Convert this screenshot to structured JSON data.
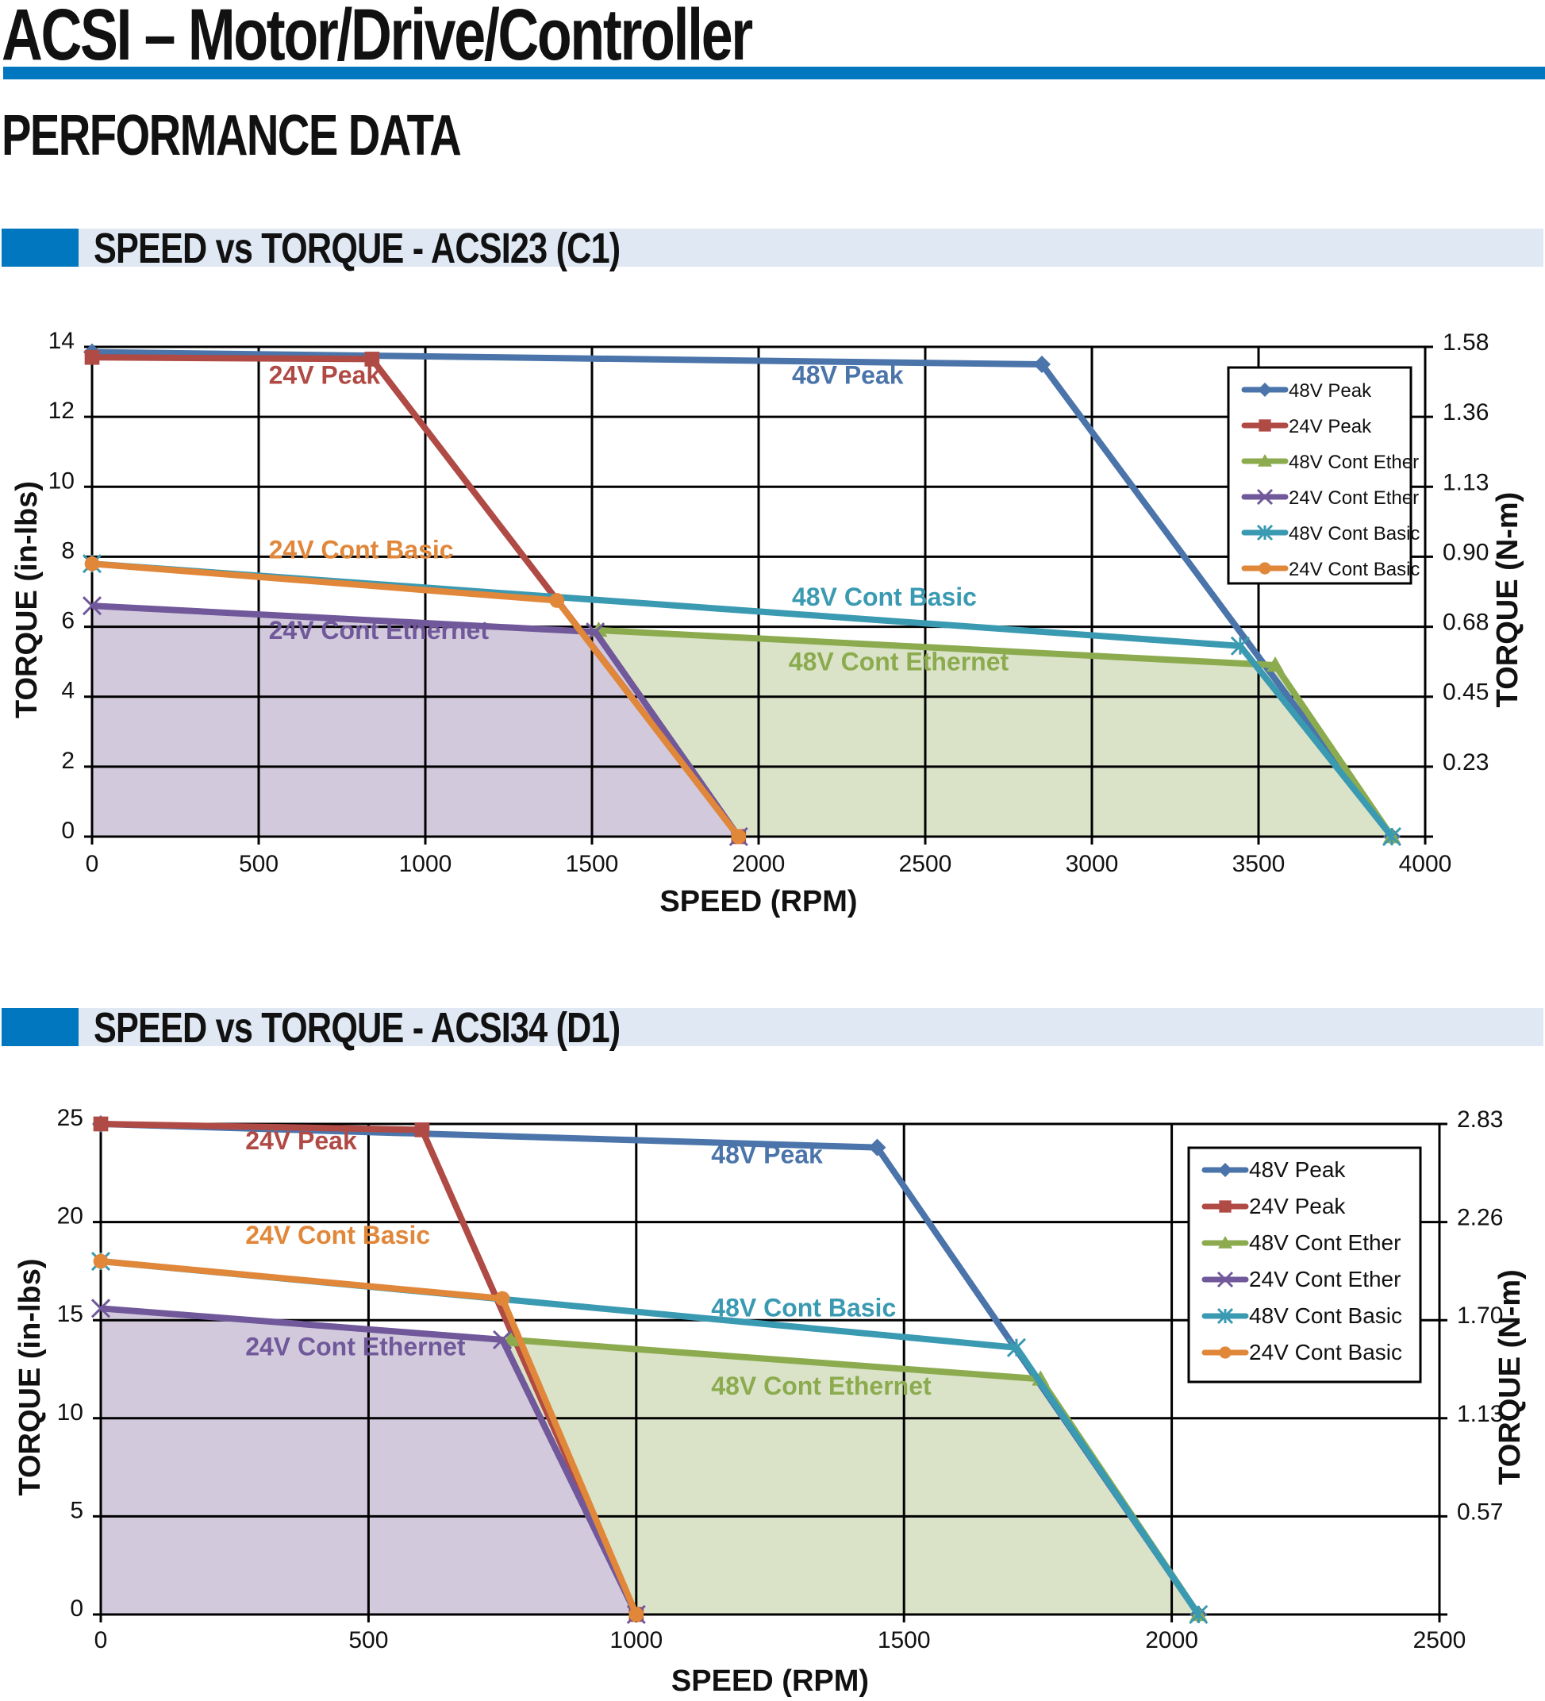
{
  "page": {
    "title": "ACSI – Motor/Drive/Controller",
    "section": "PERFORMANCE DATA"
  },
  "colors": {
    "accent_blue": "#0077be",
    "header_bg": "#e0e8f4",
    "fill_24v_ether": "#d2cadc",
    "fill_48v_ether": "#dae3c8"
  },
  "chart_data": [
    {
      "id": "acsi23",
      "header": "SPEED vs TORQUE - ACSI23 (C1)",
      "type": "line",
      "title": "SPEED vs TORQUE - ACSI23 (C1)",
      "xlabel": "SPEED (RPM)",
      "ylabel": "TORQUE (in-lbs)",
      "y2label": "TORQUE (N-m)",
      "xlim": [
        0,
        4000
      ],
      "ylim": [
        0,
        14
      ],
      "xticks": [
        0,
        500,
        1000,
        1500,
        2000,
        2500,
        3000,
        3500,
        4000
      ],
      "xtick_labels": [
        "0",
        "500",
        "1000",
        "1500",
        "2000",
        "2500",
        "3000",
        "3500",
        "4000"
      ],
      "yticks": [
        0,
        2,
        4,
        6,
        8,
        10,
        12,
        14
      ],
      "ytick_labels": [
        "0",
        "2",
        "4",
        "6",
        "8",
        "10",
        "12",
        "14"
      ],
      "y2ticks": [
        2,
        4,
        6,
        8,
        10,
        12,
        14
      ],
      "y2tick_labels": [
        "0.23",
        "0.45",
        "0.68",
        "0.90",
        "1.13",
        "1.36",
        "1.58"
      ],
      "grid": true,
      "legend_position": "top-right",
      "series": [
        {
          "name": "48V Peak",
          "color": "#4a74aa",
          "marker": "diamond",
          "x": [
            0,
            2850,
            3900
          ],
          "y": [
            13.85,
            13.5,
            0
          ],
          "annotation": {
            "text": "48V Peak",
            "x": 2100,
            "y": 12.95
          }
        },
        {
          "name": "24V Peak",
          "color": "#b04a45",
          "marker": "square",
          "x": [
            0,
            840,
            1940
          ],
          "y": [
            13.7,
            13.65,
            0
          ],
          "annotation": {
            "text": "24V Peak",
            "x": 530,
            "y": 12.95
          }
        },
        {
          "name": "48V Cont Ether",
          "color": "#8bab4e",
          "marker": "triangle",
          "fill": "#dae3c8",
          "x": [
            1520,
            3550,
            3900
          ],
          "y": [
            5.9,
            4.9,
            0
          ],
          "annotation": {
            "text": "48V Cont Ethernet",
            "x": 2090,
            "y": 4.75
          }
        },
        {
          "name": "24V Cont Ether",
          "color": "#70589a",
          "marker": "x",
          "fill": "#d2cadc",
          "x": [
            0,
            1510,
            1940
          ],
          "y": [
            6.6,
            5.85,
            0
          ],
          "annotation": {
            "text": "24V Cont Ethernet",
            "x": 530,
            "y": 5.65
          }
        },
        {
          "name": "48V Cont Basic",
          "color": "#3a9ab2",
          "marker": "star",
          "x": [
            0,
            3445,
            3900
          ],
          "y": [
            7.8,
            5.45,
            0
          ],
          "annotation": {
            "text": "48V Cont Basic",
            "x": 2100,
            "y": 6.6
          }
        },
        {
          "name": "24V Cont Basic",
          "color": "#e0873a",
          "marker": "circle",
          "x": [
            0,
            1395,
            1940
          ],
          "y": [
            7.8,
            6.75,
            0
          ],
          "annotation": {
            "text": "24V Cont Basic",
            "x": 530,
            "y": 7.95
          }
        }
      ]
    },
    {
      "id": "acsi34",
      "header": "SPEED vs TORQUE - ACSI34 (D1)",
      "type": "line",
      "title": "SPEED vs TORQUE - ACSI34 (D1)",
      "xlabel": "SPEED (RPM)",
      "ylabel": "TORQUE (in-lbs)",
      "y2label": "TORQUE (N-m)",
      "xlim": [
        0,
        2500
      ],
      "ylim": [
        0,
        25
      ],
      "xticks": [
        0,
        500,
        1000,
        1500,
        2000,
        2500
      ],
      "xtick_labels": [
        "0",
        "500",
        "1000",
        "1500",
        "2000",
        "2500"
      ],
      "yticks": [
        0,
        5,
        10,
        15,
        20,
        25
      ],
      "ytick_labels": [
        "0",
        "5",
        "10",
        "15",
        "20",
        "25"
      ],
      "y2ticks": [
        5,
        10,
        15,
        20,
        25
      ],
      "y2tick_labels": [
        "0.57",
        "1.13",
        "1.70",
        "2.26",
        "2.83"
      ],
      "grid": true,
      "legend_position": "top-right",
      "series": [
        {
          "name": "48V Peak",
          "color": "#4a74aa",
          "marker": "diamond",
          "x": [
            0,
            1450,
            2050
          ],
          "y": [
            25,
            23.8,
            0
          ],
          "annotation": {
            "text": "48V Peak",
            "x": 1140,
            "y": 23.0
          }
        },
        {
          "name": "24V Peak",
          "color": "#b04a45",
          "marker": "square",
          "x": [
            0,
            600,
            1000
          ],
          "y": [
            25,
            24.7,
            0
          ],
          "annotation": {
            "text": "24V Peak",
            "x": 270,
            "y": 23.7
          }
        },
        {
          "name": "48V Cont Ether",
          "color": "#8bab4e",
          "marker": "triangle",
          "fill": "#dae3c8",
          "x": [
            765,
            1755,
            2050
          ],
          "y": [
            14,
            12,
            0
          ],
          "annotation": {
            "text": "48V Cont Ethernet",
            "x": 1140,
            "y": 11.2
          }
        },
        {
          "name": "24V Cont Ether",
          "color": "#70589a",
          "marker": "x",
          "fill": "#d2cadc",
          "x": [
            0,
            750,
            1000
          ],
          "y": [
            15.6,
            14,
            0
          ],
          "annotation": {
            "text": "24V Cont Ethernet",
            "x": 270,
            "y": 13.2
          }
        },
        {
          "name": "48V Cont Basic",
          "color": "#3a9ab2",
          "marker": "star",
          "x": [
            0,
            1710,
            2050
          ],
          "y": [
            18,
            13.6,
            0
          ],
          "annotation": {
            "text": "48V Cont Basic",
            "x": 1140,
            "y": 15.2
          }
        },
        {
          "name": "24V Cont Basic",
          "color": "#e0873a",
          "marker": "circle",
          "x": [
            0,
            750,
            1000
          ],
          "y": [
            18,
            16.1,
            0
          ],
          "annotation": {
            "text": "24V Cont Basic",
            "x": 270,
            "y": 18.9
          }
        }
      ]
    }
  ]
}
